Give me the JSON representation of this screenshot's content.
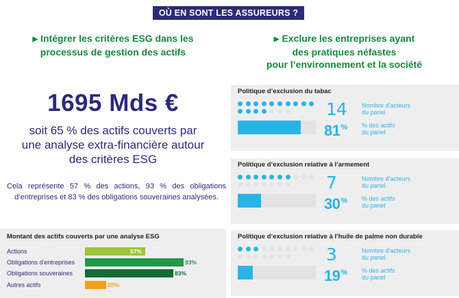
{
  "banner": "OÙ EN SONT LES ASSUREURS ?",
  "left": {
    "heading": [
      "Intégrer les critères ESG dans les",
      "processus de gestion des actifs"
    ],
    "big_number": "1695 Mds €",
    "sub": [
      "soit 65 % des actifs couverts par",
      "une analyse extra-financière autour",
      "des critères ESG"
    ],
    "paragraph": "Cela représente 57 % des actions, 93 % des obligations d’entreprises et 83 % des obligations souveraines analysées."
  },
  "right": {
    "heading": [
      "Exclure les entreprises ayant",
      "des pratiques néfastes",
      "pour l’environnement et la société"
    ],
    "label_count": [
      "Nombre d’acteurs",
      "du panel"
    ],
    "label_pct": [
      "% des actifs",
      "du panel"
    ]
  },
  "chart_data": [
    {
      "type": "bar",
      "title": "Montant des actifs couverts par une analyse ESG",
      "categories": [
        "Actions",
        "Obligations d’entreprises",
        "Obligations souveraines",
        "Autres actifs"
      ],
      "values": [
        57,
        93,
        83,
        20
      ],
      "labels": [
        "57%",
        "93%",
        "83%",
        "20%"
      ],
      "colors": [
        "#9ac43a",
        "#1e9a48",
        "#146b36",
        "#f2a21b"
      ],
      "xlim": [
        0,
        100
      ]
    },
    {
      "type": "bar",
      "series": [
        {
          "title": "Politique d’exclusion du tabac",
          "count": 14,
          "count_label": "14",
          "total": 17,
          "percent": 81,
          "percent_label": "81"
        },
        {
          "title": "Politique d’exclusion relative à l’armement",
          "count": 7,
          "count_label": "7",
          "total": 17,
          "percent": 30,
          "percent_label": "30"
        },
        {
          "title": "Politique d’exclusion relative à l’huile de palme non durable",
          "count": 3,
          "count_label": "3",
          "total": 17,
          "percent": 19,
          "percent_label": "19"
        }
      ],
      "percent_sign": "%",
      "colors": {
        "filled": "#29b4e8",
        "empty": "#e3e3e5"
      }
    }
  ]
}
